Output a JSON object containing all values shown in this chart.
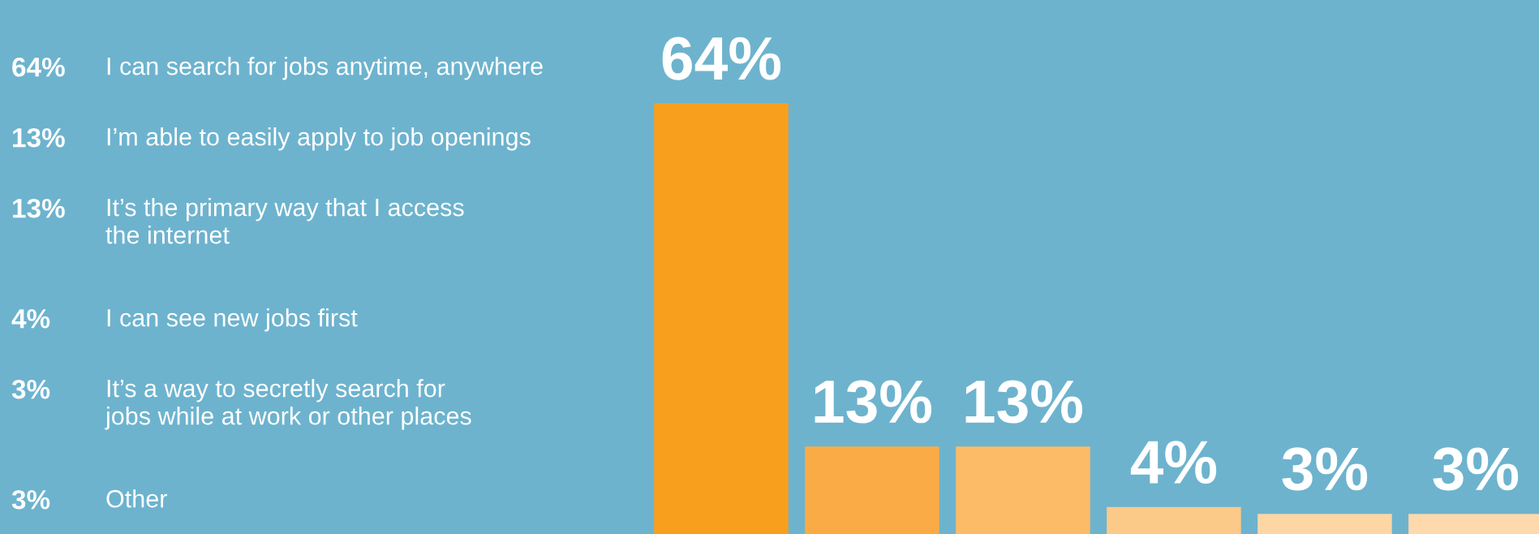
{
  "chart_data": {
    "type": "bar",
    "categories": [
      null,
      null,
      null,
      null,
      null,
      null
    ],
    "values": [
      64,
      13,
      13,
      4,
      3,
      3
    ],
    "colors": [
      "#f99f1e",
      "#fbab45",
      "#fbbb67",
      "#fcca88",
      "#fdd6a5",
      "#fdd9ad"
    ],
    "value_labels": [
      "64%",
      "13%",
      "13%",
      "4%",
      "3%",
      "3%"
    ],
    "annotations": [
      "64%",
      "I can search for jobs anytime, anywhere",
      "13%",
      "I’m able to easily apply to job openings",
      "13%",
      "It’s the primary way that I access\nthe internet",
      "4%",
      "I can see new jobs first",
      "3%",
      "It’s a way to secretly search for\njobs while at work or other places",
      "3%",
      "Other"
    ]
  }
}
